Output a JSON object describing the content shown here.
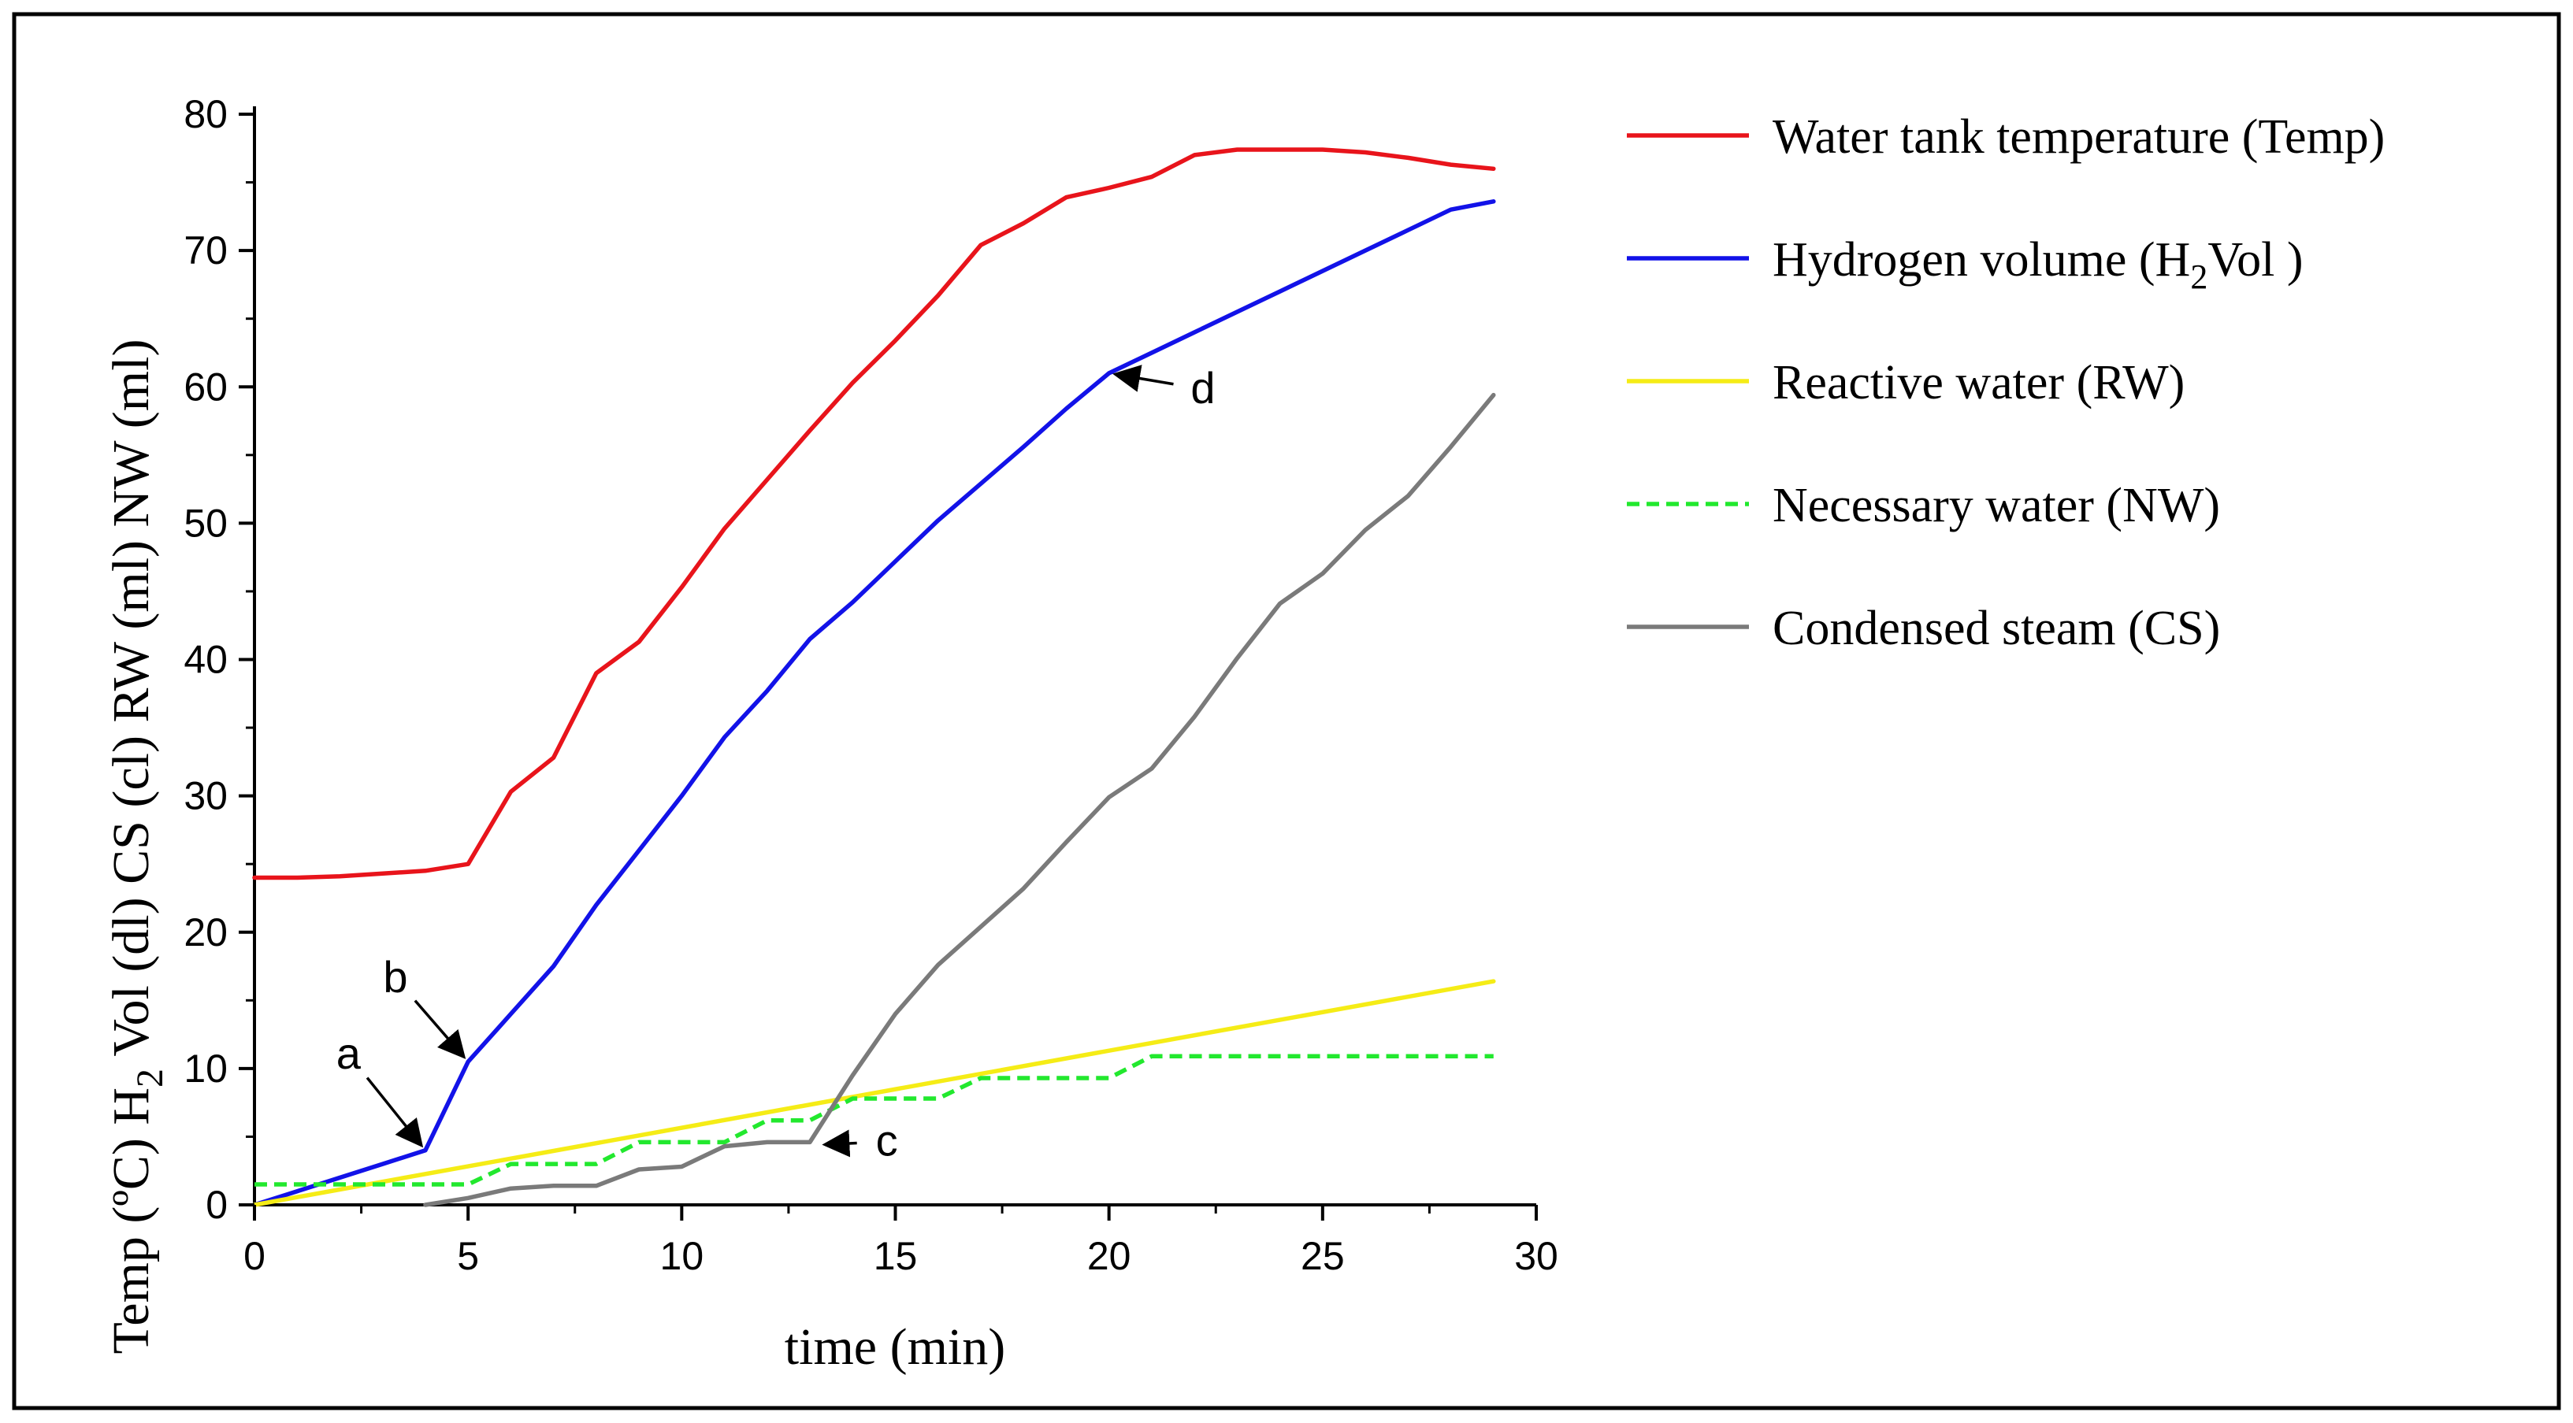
{
  "chart_data": {
    "type": "line",
    "title": "",
    "xlabel": "time (min)",
    "ylabel": {
      "part1": "Temp (ºC) H",
      "sub": "2",
      "part2": " Vol (dl)  CS (cl) RW (ml)  NW (ml)"
    },
    "xlim": [
      0,
      30
    ],
    "ylim": [
      0,
      80
    ],
    "x_ticks": [
      0,
      5,
      10,
      15,
      20,
      25,
      30
    ],
    "y_ticks": [
      0,
      10,
      20,
      30,
      40,
      50,
      60,
      70,
      80
    ],
    "grid": false,
    "legend_position": "right",
    "series": [
      {
        "name": "Water tank temperature (Temp)",
        "legend_parts": [
          "Water tank temperature (Temp)"
        ],
        "color": "#e8141b",
        "dash": "solid",
        "x": [
          0,
          1,
          2,
          3,
          4,
          5,
          6,
          7,
          8,
          9,
          10,
          11,
          12,
          13,
          14,
          15,
          16,
          17,
          18,
          19,
          20,
          21,
          22,
          23,
          24,
          25,
          26,
          27,
          28,
          29
        ],
        "y": [
          24.0,
          24.0,
          24.1,
          24.3,
          24.5,
          25.0,
          30.3,
          32.8,
          39.0,
          41.3,
          45.3,
          49.6,
          53.2,
          56.8,
          60.3,
          63.4,
          66.7,
          70.4,
          72.0,
          73.9,
          74.6,
          75.4,
          77.0,
          77.4,
          77.4,
          77.4,
          77.2,
          76.8,
          76.3,
          76.0
        ]
      },
      {
        "name": "Hydrogen volume (H2Vol )",
        "legend_parts": [
          "Hydrogen volume (H",
          "2",
          "Vol )"
        ],
        "color": "#1212e8",
        "dash": "solid",
        "x": [
          0,
          1,
          2,
          3,
          4,
          5,
          6,
          7,
          8,
          9,
          10,
          11,
          12,
          13,
          14,
          15,
          16,
          17,
          18,
          19,
          20,
          21,
          22,
          23,
          24,
          25,
          26,
          27,
          28,
          29
        ],
        "y": [
          0.0,
          1.0,
          2.0,
          3.0,
          4.0,
          10.5,
          14.0,
          17.5,
          22.0,
          26.0,
          30.0,
          34.3,
          37.7,
          41.5,
          44.2,
          47.2,
          50.2,
          52.9,
          55.6,
          58.4,
          61.0,
          62.5,
          64.0,
          65.5,
          67.0,
          68.5,
          70.0,
          71.5,
          73.0,
          73.6
        ]
      },
      {
        "name": "Reactive water (RW)",
        "legend_parts": [
          "Reactive water (RW)"
        ],
        "color": "#f5ec16",
        "dash": "solid",
        "x": [
          0,
          29
        ],
        "y": [
          0.0,
          16.4
        ]
      },
      {
        "name": "Necessary water (NW)",
        "legend_parts": [
          "Necessary water (NW)"
        ],
        "color": "#22e82e",
        "dash": "dashed",
        "x": [
          0,
          4,
          5,
          6,
          7,
          8,
          9,
          10,
          11,
          12,
          13,
          14,
          15,
          16,
          17,
          18,
          19,
          20,
          21,
          22,
          23,
          24,
          25,
          26,
          27,
          28,
          29
        ],
        "y": [
          1.5,
          1.5,
          1.5,
          3.0,
          3.0,
          3.0,
          4.6,
          4.6,
          4.6,
          6.2,
          6.2,
          7.8,
          7.8,
          7.8,
          9.3,
          9.3,
          9.3,
          9.3,
          10.9,
          10.9,
          10.9,
          10.9,
          10.9,
          10.9,
          10.9,
          10.9,
          10.9
        ]
      },
      {
        "name": "Condensed steam (CS)",
        "legend_parts": [
          "Condensed steam (CS)"
        ],
        "color": "#7a7a7a",
        "dash": "solid",
        "x": [
          4,
          5,
          6,
          7,
          8,
          9,
          10,
          11,
          12,
          13,
          14,
          15,
          16,
          17,
          18,
          19,
          20,
          21,
          22,
          23,
          24,
          25,
          26,
          27,
          28,
          29
        ],
        "y": [
          0.0,
          0.5,
          1.2,
          1.4,
          1.4,
          2.6,
          2.8,
          4.3,
          4.6,
          4.6,
          9.5,
          14.0,
          17.6,
          20.4,
          23.2,
          26.6,
          29.9,
          32.0,
          35.8,
          40.1,
          44.1,
          46.3,
          49.5,
          52.0,
          55.6,
          59.4
        ]
      }
    ],
    "annotations": [
      {
        "label": "a",
        "target": [
          4,
          4.0
        ],
        "text_at": [
          2.2,
          10.0
        ]
      },
      {
        "label": "b",
        "target": [
          5,
          10.5
        ],
        "text_at": [
          3.3,
          15.6
        ]
      },
      {
        "label": "c",
        "target": [
          13.2,
          4.4
        ],
        "text_at": [
          14.8,
          3.6
        ]
      },
      {
        "label": "d",
        "target": [
          20,
          61.0
        ],
        "text_at": [
          22.2,
          58.8
        ]
      }
    ]
  }
}
